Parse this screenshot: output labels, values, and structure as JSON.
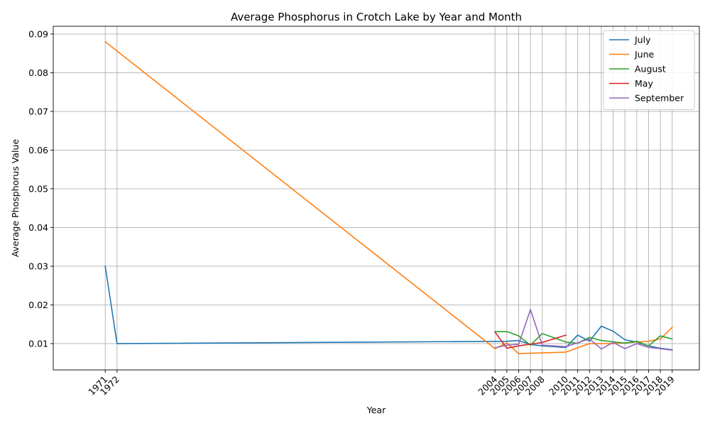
{
  "chart_data": {
    "type": "line",
    "title": "Average Phosphorus in Crotch Lake by Year and Month",
    "xlabel": "Year",
    "ylabel": "Average Phosphorus Value",
    "xlim": [
      1966.6,
      2021.3
    ],
    "ylim": [
      0.0032,
      0.092
    ],
    "x_ticks": [
      1971,
      1972,
      2004,
      2005,
      2006,
      2007,
      2008,
      2010,
      2011,
      2012,
      2013,
      2014,
      2015,
      2016,
      2017,
      2018,
      2019
    ],
    "x_tick_labels": [
      "1971",
      "1972",
      "2004",
      "2005",
      "2006",
      "2007",
      "2008",
      "2010",
      "2011",
      "2012",
      "2013",
      "2014",
      "2015",
      "2016",
      "2017",
      "2018",
      "2019"
    ],
    "y_ticks": [
      0.01,
      0.02,
      0.03,
      0.04,
      0.05,
      0.06,
      0.07,
      0.08,
      0.09
    ],
    "y_tick_labels": [
      "0.01",
      "0.02",
      "0.03",
      "0.04",
      "0.05",
      "0.06",
      "0.07",
      "0.08",
      "0.09"
    ],
    "grid": true,
    "legend_position": "top-right",
    "series": [
      {
        "name": "July",
        "color": "#1f77b4",
        "x": [
          1971,
          1972,
          2005,
          2006,
          2007,
          2008,
          2010,
          2011,
          2012,
          2013,
          2014,
          2015,
          2016,
          2017,
          2018,
          2019
        ],
        "y": [
          0.03,
          0.01,
          0.0106,
          0.0108,
          0.0098,
          0.0094,
          0.009,
          0.0122,
          0.0106,
          0.0145,
          0.0132,
          0.011,
          0.0104,
          0.0094,
          0.0088,
          0.0084
        ]
      },
      {
        "name": "June",
        "color": "#ff7f0e",
        "x": [
          1971,
          2004,
          2005,
          2006,
          2008,
          2010,
          2012,
          2014,
          2016,
          2017,
          2018,
          2019
        ],
        "y": [
          0.088,
          0.0087,
          0.0102,
          0.0074,
          0.0076,
          0.0078,
          0.01,
          0.01,
          0.0104,
          0.0106,
          0.0112,
          0.0142
        ]
      },
      {
        "name": "August",
        "color": "#2ca02c",
        "x": [
          2004,
          2005,
          2006,
          2007,
          2008,
          2010,
          2011,
          2012,
          2013,
          2015,
          2016,
          2017,
          2018,
          2019
        ],
        "y": [
          0.0131,
          0.0131,
          0.012,
          0.0096,
          0.0126,
          0.0104,
          0.0101,
          0.0116,
          0.0108,
          0.0101,
          0.0106,
          0.0094,
          0.012,
          0.0112
        ]
      },
      {
        "name": "May",
        "color": "#d62728",
        "x": [
          2004,
          2005,
          2006,
          2008,
          2010
        ],
        "y": [
          0.013,
          0.0088,
          0.0094,
          0.0103,
          0.0122
        ]
      },
      {
        "name": "September",
        "color": "#9467bd",
        "x": [
          2004,
          2005,
          2006,
          2007,
          2008,
          2010,
          2012,
          2013,
          2014,
          2015,
          2016,
          2017,
          2018,
          2019
        ],
        "y": [
          0.0089,
          0.0096,
          0.0098,
          0.0188,
          0.0096,
          0.0092,
          0.0112,
          0.0086,
          0.0103,
          0.0087,
          0.01,
          0.009,
          0.0087,
          0.0083
        ]
      }
    ]
  }
}
